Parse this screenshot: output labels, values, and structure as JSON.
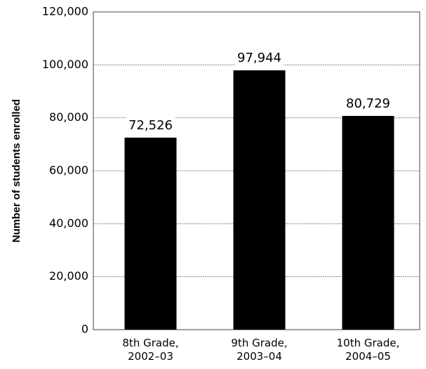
{
  "chart_data": {
    "type": "bar",
    "title": "",
    "xlabel": "",
    "ylabel": "Number of students enrolled",
    "categories": [
      [
        "8th Grade,",
        "2002–03"
      ],
      [
        "9th Grade,",
        "2003–04"
      ],
      [
        "10th Grade,",
        "2004–05"
      ]
    ],
    "values": [
      72526,
      97944,
      80729
    ],
    "value_labels": [
      "72,526",
      "97,944",
      "80,729"
    ],
    "ylim": [
      0,
      120000
    ],
    "yticks": [
      0,
      20000,
      40000,
      60000,
      80000,
      100000,
      120000
    ],
    "ytick_labels": [
      "0",
      "20,000",
      "40,000",
      "60,000",
      "80,000",
      "100,000",
      "120,000"
    ],
    "grid": true,
    "bar_color": "#000000",
    "grid_color": "#888888"
  }
}
